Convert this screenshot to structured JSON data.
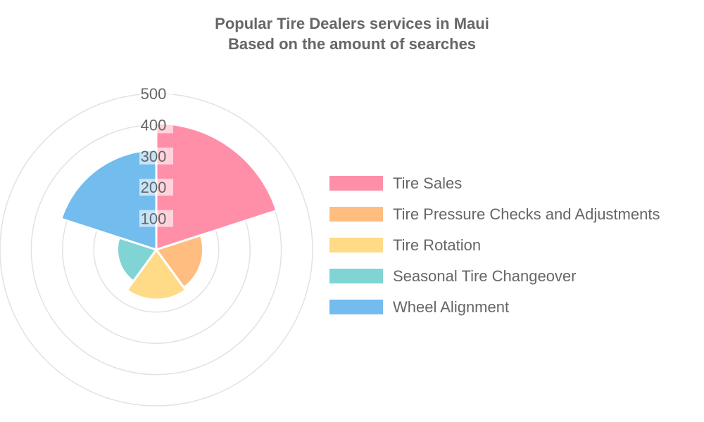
{
  "chart_data": {
    "type": "polarArea",
    "title": [
      "Popular Tire Dealers services in Maui",
      "Based on the amount of searches"
    ],
    "categories": [
      "Tire Sales",
      "Tire Pressure Checks and Adjustments",
      "Tire Rotation",
      "Seasonal Tire Changeover",
      "Wheel Alignment"
    ],
    "values": [
      405,
      150,
      160,
      125,
      320
    ],
    "colors": [
      "#ff8fa8",
      "#ffbd80",
      "#ffdb88",
      "#80d4d4",
      "#72bcee"
    ],
    "r_ticks": [
      100,
      200,
      300,
      400,
      500
    ],
    "rlim": [
      0,
      500
    ],
    "grid": true,
    "legend_position": "right"
  }
}
